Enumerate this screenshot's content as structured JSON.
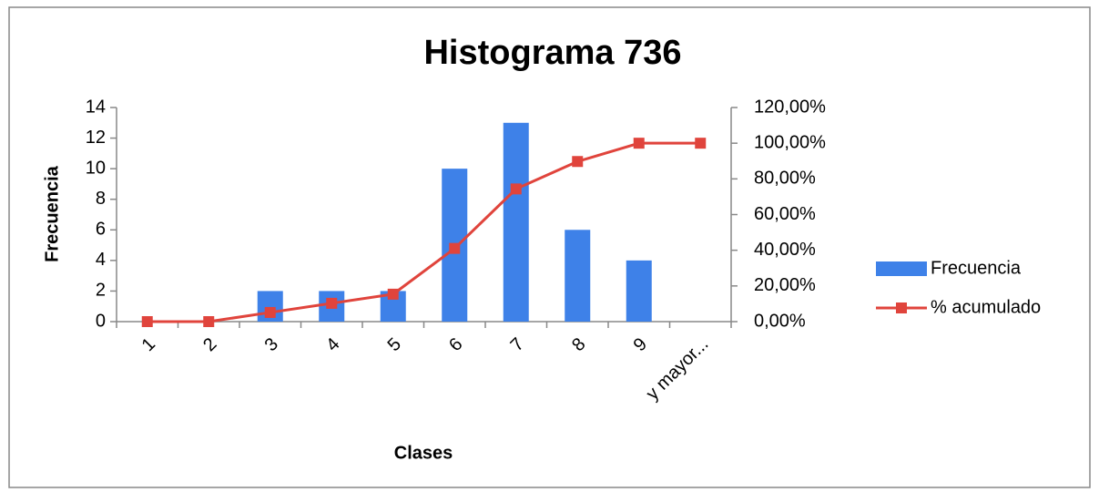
{
  "chart_data": {
    "type": "bar",
    "title": "Histograma 736",
    "x_label": "Clases",
    "y_label": "Frecuencia",
    "categories": [
      "1",
      "2",
      "3",
      "4",
      "5",
      "6",
      "7",
      "8",
      "9",
      "y mayor..."
    ],
    "series": [
      {
        "name": "Frecuencia",
        "type": "bar",
        "color": "#3e81e8",
        "values": [
          0,
          0,
          2,
          2,
          2,
          10,
          13,
          6,
          4,
          0
        ]
      },
      {
        "name": "% acumulado",
        "type": "line",
        "axis": "y2",
        "color": "#e0443c",
        "values": [
          0,
          0,
          5.13,
          10.26,
          15.38,
          41.03,
          74.36,
          89.74,
          100,
          100
        ]
      }
    ],
    "ylim": [
      0,
      14
    ],
    "yticks": [
      0,
      2,
      4,
      6,
      8,
      10,
      12,
      14
    ],
    "y2lim": [
      0,
      120
    ],
    "y2ticks": [
      {
        "value": 0,
        "label": "0,00%"
      },
      {
        "value": 20,
        "label": "20,00%"
      },
      {
        "value": 40,
        "label": "40,00%"
      },
      {
        "value": 60,
        "label": "60,00%"
      },
      {
        "value": 80,
        "label": "80,00%"
      },
      {
        "value": 100,
        "label": "100,00%"
      },
      {
        "value": 120,
        "label": "120,00%"
      }
    ],
    "grid": false,
    "legend": "right"
  }
}
